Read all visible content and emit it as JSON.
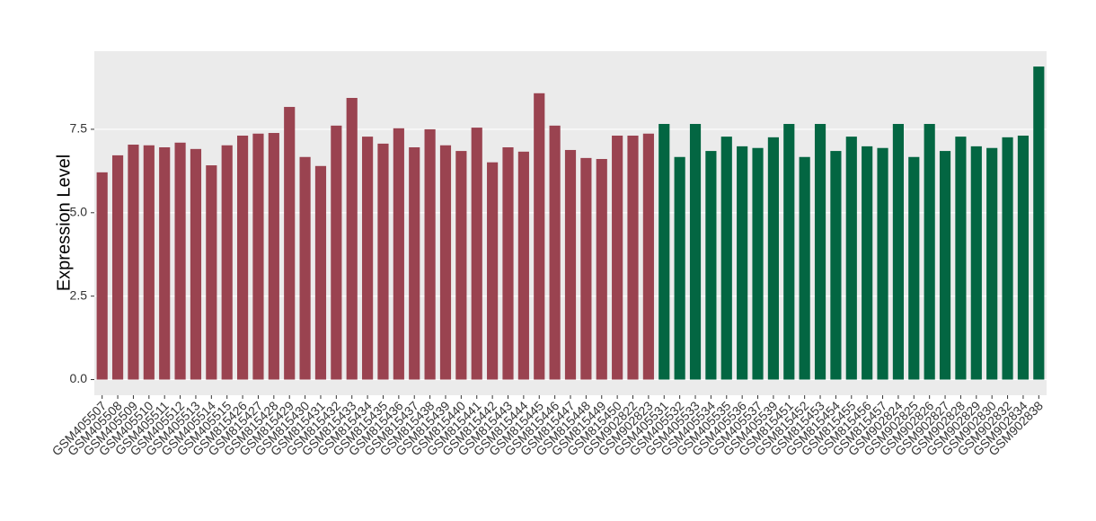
{
  "chart_data": {
    "type": "bar",
    "y_label": "Expression Level",
    "categories": [
      "GSM405507",
      "GSM405508",
      "GSM405509",
      "GSM405510",
      "GSM405511",
      "GSM405512",
      "GSM405513",
      "GSM405514",
      "GSM405515",
      "GSM815426",
      "GSM815427",
      "GSM815428",
      "GSM815429",
      "GSM815430",
      "GSM815431",
      "GSM815432",
      "GSM815433",
      "GSM815434",
      "GSM815435",
      "GSM815436",
      "GSM815437",
      "GSM815438",
      "GSM815439",
      "GSM815440",
      "GSM815441",
      "GSM815442",
      "GSM815443",
      "GSM815444",
      "GSM815445",
      "GSM815446",
      "GSM815447",
      "GSM815448",
      "GSM815449",
      "GSM815450",
      "GSM902822",
      "GSM902823",
      "GSM405531",
      "GSM405532",
      "GSM405533",
      "GSM405534",
      "GSM405535",
      "GSM405536",
      "GSM405537",
      "GSM405539",
      "GSM815451",
      "GSM815452",
      "GSM815453",
      "GSM815454",
      "GSM815455",
      "GSM815456",
      "GSM815457",
      "GSM902824",
      "GSM902825",
      "GSM902826",
      "GSM902827",
      "GSM902828",
      "GSM902829",
      "GSM902830",
      "GSM902832",
      "GSM902834",
      "GSM902838"
    ],
    "values": [
      6.21,
      6.72,
      7.04,
      7.02,
      6.96,
      7.1,
      6.91,
      6.42,
      7.02,
      7.31,
      7.37,
      7.39,
      8.17,
      6.67,
      6.4,
      7.61,
      8.44,
      7.28,
      7.07,
      7.53,
      6.96,
      7.5,
      7.02,
      6.85,
      7.55,
      6.51,
      6.96,
      6.83,
      8.58,
      7.61,
      6.88,
      6.64,
      6.61,
      7.31,
      7.31,
      7.37,
      7.66,
      6.67,
      7.66,
      6.85,
      7.28,
      6.99,
      6.94,
      7.26,
      7.66,
      6.67,
      7.66,
      6.85,
      7.28,
      6.99,
      6.94,
      7.66,
      6.67,
      7.66,
      6.85,
      7.28,
      6.99,
      6.94,
      7.26,
      7.31,
      9.38
    ],
    "colors": [
      "#9a4350",
      "#9a4350",
      "#9a4350",
      "#9a4350",
      "#9a4350",
      "#9a4350",
      "#9a4350",
      "#9a4350",
      "#9a4350",
      "#9a4350",
      "#9a4350",
      "#9a4350",
      "#9a4350",
      "#9a4350",
      "#9a4350",
      "#9a4350",
      "#9a4350",
      "#9a4350",
      "#9a4350",
      "#9a4350",
      "#9a4350",
      "#9a4350",
      "#9a4350",
      "#9a4350",
      "#9a4350",
      "#9a4350",
      "#9a4350",
      "#9a4350",
      "#9a4350",
      "#9a4350",
      "#9a4350",
      "#9a4350",
      "#9a4350",
      "#9a4350",
      "#9a4350",
      "#9a4350",
      "#036642",
      "#036642",
      "#036642",
      "#036642",
      "#036642",
      "#036642",
      "#036642",
      "#036642",
      "#036642",
      "#036642",
      "#036642",
      "#036642",
      "#036642",
      "#036642",
      "#036642",
      "#036642",
      "#036642",
      "#036642",
      "#036642",
      "#036642",
      "#036642",
      "#036642",
      "#036642",
      "#036642",
      "#036642"
    ],
    "ylim": [
      -0.47,
      9.84
    ],
    "yticks": [
      {
        "value": 0,
        "label": "0.0"
      },
      2.5,
      {
        "value": 5,
        "label": "5.0"
      },
      7.5
    ],
    "grid": true
  }
}
